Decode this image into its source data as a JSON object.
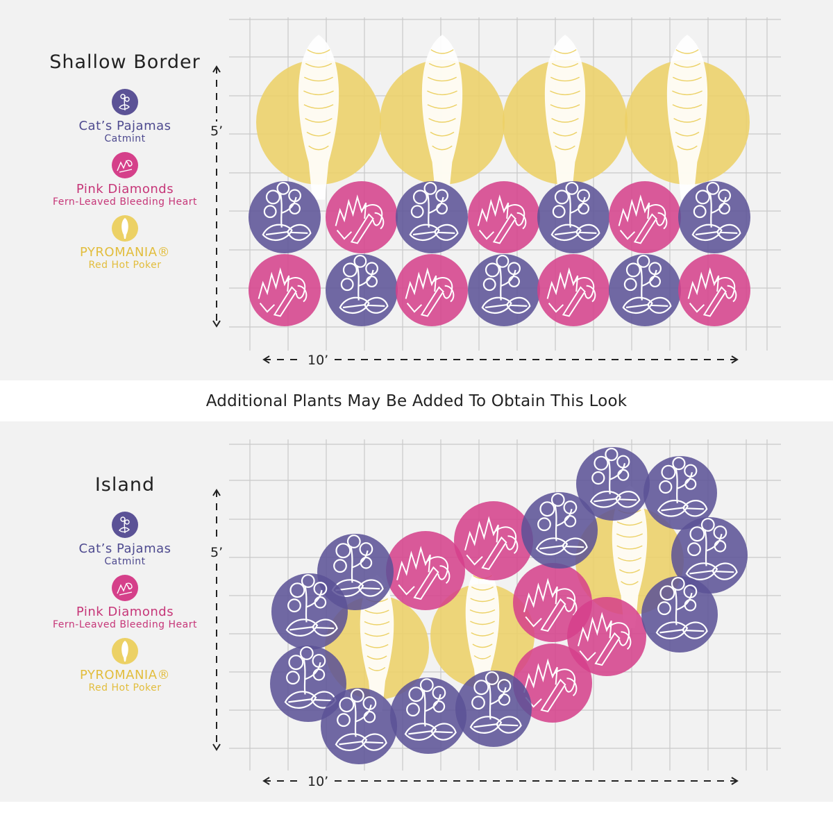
{
  "banner_text": "Additional Plants May Be Added To Obtain This Look",
  "legend": {
    "purple": {
      "name": "Cat’s Pajamas",
      "sub": "Catmint",
      "icon": "catmint-icon",
      "color": "#5b5296"
    },
    "pink": {
      "name": "Pink Diamonds",
      "sub": "Fern-Leaved Bleeding Heart",
      "icon": "bleeding-heart-icon",
      "color": "#d5408a"
    },
    "yellow": {
      "name": "PYROMANIA®",
      "sub": "Red Hot Poker",
      "icon": "red-hot-poker-icon",
      "color": "#ecd165"
    }
  },
  "layouts": [
    {
      "title": "Shallow Border",
      "height_label": "5’",
      "width_label": "10’"
    },
    {
      "title": "Island",
      "height_label": "5’",
      "width_label": "10’"
    }
  ]
}
